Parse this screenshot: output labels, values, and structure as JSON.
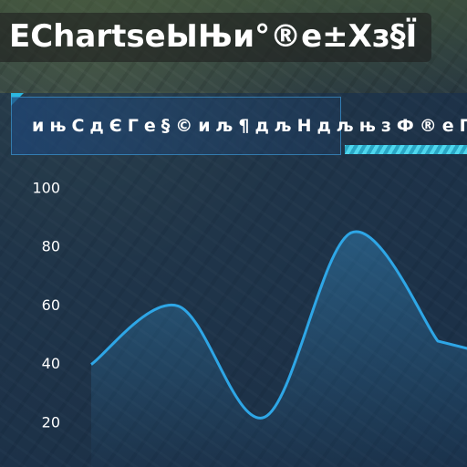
{
  "page_title": "EChartsеЫЊи°®е±Хз§Ї",
  "chart_data": {
    "type": "line",
    "title": "ињСдЄГе§©иљ¶дљНдљњзФ®еПШеМЦ",
    "values": [
      40,
      60,
      22,
      85,
      48
    ],
    "color": "#2ea6e6",
    "ylim": [
      0,
      100
    ],
    "yticks": [
      20,
      40,
      60,
      80,
      100
    ],
    "area": true
  }
}
